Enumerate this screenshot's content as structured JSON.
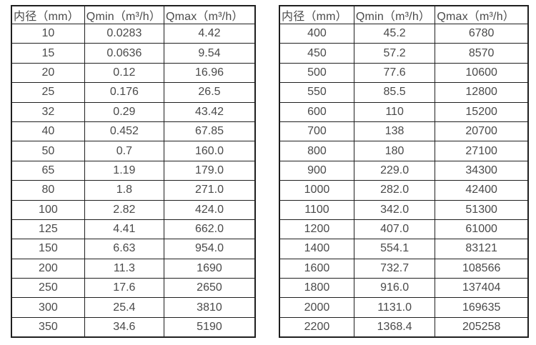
{
  "page": {
    "background_color": "#ffffff",
    "border_color": "#1f1f1f",
    "text_color": "#4a4a4a"
  },
  "tables": [
    {
      "name": "small-diameter-table",
      "headers": [
        "内径（mm）",
        "Qmin（m³/h）",
        "Qmax（m³/h）"
      ],
      "rows": [
        [
          "10",
          "0.0283",
          "4.42"
        ],
        [
          "15",
          "0.0636",
          "9.54"
        ],
        [
          "20",
          "0.12",
          "16.96"
        ],
        [
          "25",
          "0.176",
          "26.5"
        ],
        [
          "32",
          "0.29",
          "43.42"
        ],
        [
          "40",
          "0.452",
          "67.85"
        ],
        [
          "50",
          "0.7",
          "160.0"
        ],
        [
          "65",
          "1.19",
          "179.0"
        ],
        [
          "80",
          "1.8",
          "271.0"
        ],
        [
          "100",
          "2.82",
          "424.0"
        ],
        [
          "125",
          "4.41",
          "662.0"
        ],
        [
          "150",
          "6.63",
          "954.0"
        ],
        [
          "200",
          "11.3",
          "1690"
        ],
        [
          "250",
          "17.6",
          "2650"
        ],
        [
          "300",
          "25.4",
          "3810"
        ],
        [
          "350",
          "34.6",
          "5190"
        ]
      ]
    },
    {
      "name": "large-diameter-table",
      "headers": [
        "内径（mm）",
        "Qmin（m³/h）",
        "Qmax（m³/h）"
      ],
      "rows": [
        [
          "400",
          "45.2",
          "6780"
        ],
        [
          "450",
          "57.2",
          "8570"
        ],
        [
          "500",
          "77.6",
          "10600"
        ],
        [
          "550",
          "85.5",
          "12800"
        ],
        [
          "600",
          "110",
          "15200"
        ],
        [
          "700",
          "138",
          "20700"
        ],
        [
          "800",
          "180",
          "27100"
        ],
        [
          "900",
          "229.0",
          "34300"
        ],
        [
          "1000",
          "282.0",
          "42400"
        ],
        [
          "1100",
          "342.0",
          "51300"
        ],
        [
          "1200",
          "407.0",
          "61000"
        ],
        [
          "1400",
          "554.1",
          "83121"
        ],
        [
          "1600",
          "732.7",
          "108566"
        ],
        [
          "1800",
          "916.0",
          "137404"
        ],
        [
          "2000",
          "1131.0",
          "169635"
        ],
        [
          "2200",
          "1368.4",
          "205258"
        ]
      ]
    }
  ]
}
